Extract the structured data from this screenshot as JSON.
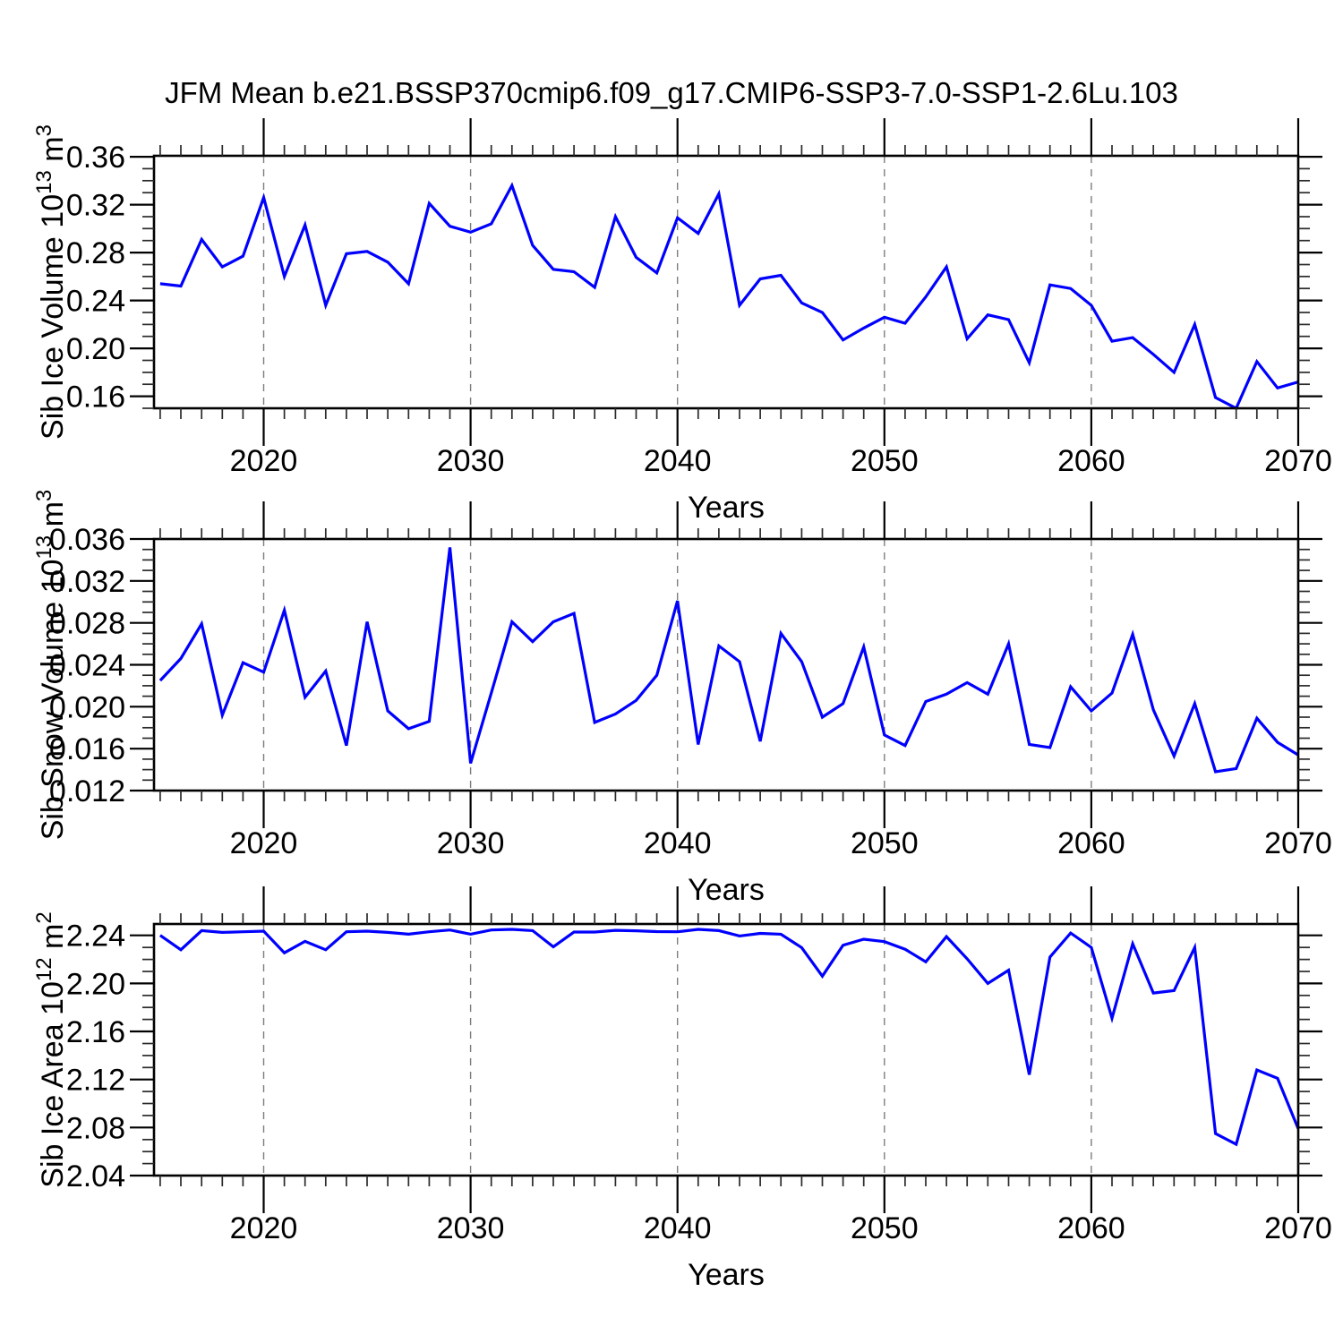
{
  "title": "JFM Mean b.e21.BSSP370cmip6.f09_g17.CMIP6-SSP3-7.0-SSP1-2.6Lu.103",
  "line_color": "#0000fe",
  "grid_color": "#7d7d7d",
  "chart_data": [
    {
      "type": "line",
      "name": "sib-ice-volume",
      "ylabel_parts": [
        {
          "t": "Sib Ice Volume 10"
        },
        {
          "t": "13",
          "sup": true
        },
        {
          "t": " m"
        },
        {
          "t": "3",
          "sup": true
        }
      ],
      "xlabel": "Years",
      "x_start": 2015,
      "x_end": 2070,
      "values": [
        0.254,
        0.252,
        0.291,
        0.268,
        0.277,
        0.326,
        0.26,
        0.303,
        0.236,
        0.279,
        0.281,
        0.272,
        0.254,
        0.321,
        0.302,
        0.297,
        0.304,
        0.336,
        0.286,
        0.266,
        0.264,
        0.251,
        0.31,
        0.276,
        0.263,
        0.309,
        0.296,
        0.329,
        0.236,
        0.258,
        0.261,
        0.238,
        0.23,
        0.207,
        0.217,
        0.226,
        0.221,
        0.243,
        0.268,
        0.208,
        0.228,
        0.224,
        0.188,
        0.253,
        0.25,
        0.236,
        0.206,
        0.209,
        0.195,
        0.18,
        0.22,
        0.159,
        0.15,
        0.189,
        0.167,
        0.172
      ],
      "ylim": [
        0.15,
        0.3608
      ],
      "yticks": [
        0.16,
        0.2,
        0.24,
        0.28,
        0.32,
        0.36
      ],
      "ytick_labels": [
        "0.16",
        "0.20",
        "0.24",
        "0.28",
        "0.32",
        "0.36"
      ],
      "ymajor_step": 0.04,
      "yminor_step": 0.01,
      "xlim": [
        2014.7,
        2070
      ],
      "xticks": [
        2020,
        2030,
        2040,
        2050,
        2060,
        2070
      ],
      "xtick_labels": [
        "2020",
        "2030",
        "2040",
        "2050",
        "2060",
        "2070"
      ],
      "grid_years": [
        2020,
        2030,
        2040,
        2050,
        2060
      ]
    },
    {
      "type": "line",
      "name": "sib-snow-volume",
      "ylabel_parts": [
        {
          "t": "Sib Snow Volume 10"
        },
        {
          "t": "13",
          "sup": true
        },
        {
          "t": " m"
        },
        {
          "t": "3",
          "sup": true
        }
      ],
      "xlabel": "Years",
      "x_start": 2015,
      "x_end": 2070,
      "values": [
        0.0225,
        0.0246,
        0.0279,
        0.0192,
        0.0242,
        0.0233,
        0.0292,
        0.0209,
        0.0234,
        0.0163,
        0.0281,
        0.0196,
        0.0179,
        0.0186,
        0.0352,
        0.0146,
        0.0213,
        0.0281,
        0.0262,
        0.0281,
        0.0289,
        0.0185,
        0.0193,
        0.0206,
        0.023,
        0.0301,
        0.0164,
        0.0258,
        0.0243,
        0.0167,
        0.027,
        0.0243,
        0.019,
        0.0203,
        0.0257,
        0.0173,
        0.0163,
        0.0205,
        0.0212,
        0.0223,
        0.0212,
        0.026,
        0.0164,
        0.0161,
        0.0219,
        0.0196,
        0.0213,
        0.0269,
        0.0197,
        0.0153,
        0.0203,
        0.0138,
        0.0141,
        0.0189,
        0.0166,
        0.0154
      ],
      "ylim": [
        0.012,
        0.036
      ],
      "yticks": [
        0.012,
        0.016,
        0.02,
        0.024,
        0.028,
        0.032,
        0.036
      ],
      "ytick_labels": [
        "0.012",
        "0.016",
        "0.020",
        "0.024",
        "0.028",
        "0.032",
        "0.036"
      ],
      "ymajor_step": 0.004,
      "yminor_step": 0.001,
      "xlim": [
        2014.7,
        2070
      ],
      "xticks": [
        2020,
        2030,
        2040,
        2050,
        2060,
        2070
      ],
      "xtick_labels": [
        "2020",
        "2030",
        "2040",
        "2050",
        "2060",
        "2070"
      ],
      "grid_years": [
        2020,
        2030,
        2040,
        2050,
        2060
      ]
    },
    {
      "type": "line",
      "name": "sib-ice-area",
      "ylabel_parts": [
        {
          "t": "Sib Ice Area 10"
        },
        {
          "t": "12",
          "sup": true
        },
        {
          "t": " m"
        },
        {
          "t": "2",
          "sup": true
        }
      ],
      "xlabel": "Years",
      "x_start": 2015,
      "x_end": 2070,
      "values": [
        2.24,
        2.228,
        2.244,
        2.2425,
        2.243,
        2.2435,
        2.2255,
        2.235,
        2.228,
        2.243,
        2.2435,
        2.2425,
        2.241,
        2.243,
        2.2445,
        2.241,
        2.2445,
        2.245,
        2.244,
        2.2305,
        2.2428,
        2.2428,
        2.2442,
        2.2438,
        2.2432,
        2.243,
        2.245,
        2.244,
        2.2395,
        2.2417,
        2.241,
        2.2298,
        2.206,
        2.2318,
        2.2368,
        2.2348,
        2.2285,
        2.218,
        2.239,
        2.2205,
        2.2,
        2.211,
        2.124,
        2.222,
        2.242,
        2.23,
        2.171,
        2.233,
        2.192,
        2.194,
        2.23,
        2.075,
        2.066,
        2.128,
        2.121,
        2.079
      ],
      "ylim": [
        2.04,
        2.2495
      ],
      "yticks": [
        2.04,
        2.08,
        2.12,
        2.16,
        2.2,
        2.24
      ],
      "ytick_labels": [
        "2.04",
        "2.08",
        "2.12",
        "2.16",
        "2.20",
        "2.24"
      ],
      "ymajor_step": 0.04,
      "yminor_step": 0.01,
      "xlim": [
        2014.7,
        2070
      ],
      "xticks": [
        2020,
        2030,
        2040,
        2050,
        2060,
        2070
      ],
      "xtick_labels": [
        "2020",
        "2030",
        "2040",
        "2050",
        "2060",
        "2070"
      ],
      "grid_years": [
        2020,
        2030,
        2040,
        2050,
        2060
      ]
    }
  ]
}
